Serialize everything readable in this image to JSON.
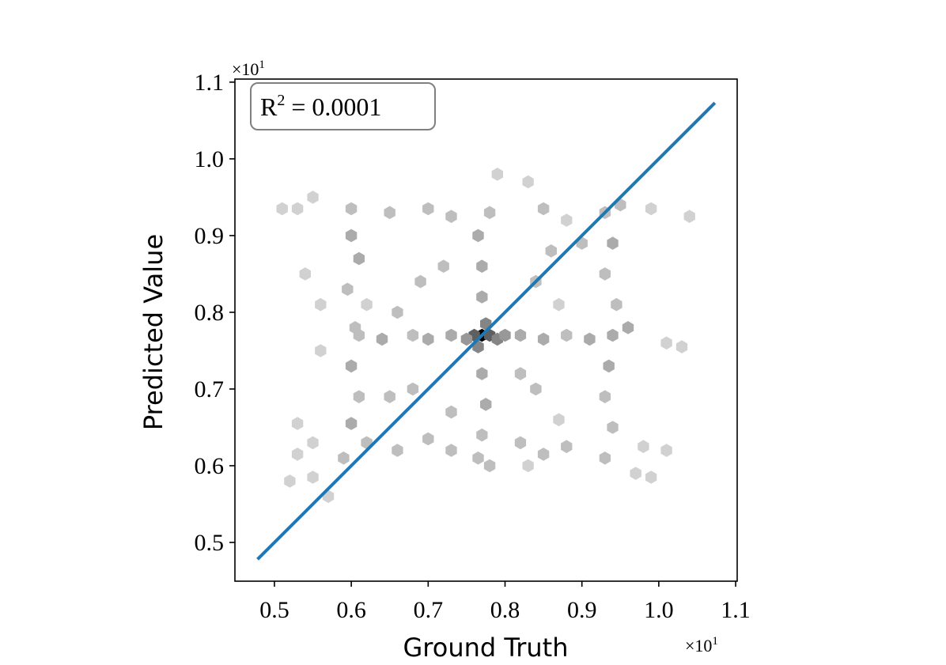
{
  "chart_data": {
    "type": "hexbin",
    "x_label": "Ground Truth",
    "y_label": "Predicted Value",
    "annotation": [
      "R",
      "2",
      " = 0.0001"
    ],
    "x_offset": [
      "×10",
      "1"
    ],
    "y_offset": [
      "×10",
      "1"
    ],
    "xlim": [
      0.4486,
      1.102
    ],
    "ylim": [
      0.4495,
      1.104
    ],
    "xticks": [
      0.5,
      0.6,
      0.7,
      0.8,
      0.9,
      {
        "value": 1,
        "label": "1.0"
      },
      1.1
    ],
    "yticks": [
      0.5,
      0.6,
      0.7,
      0.8,
      0.9,
      {
        "value": 1,
        "label": "1.0"
      },
      1.1
    ],
    "cells": {
      "x": [
        0.77,
        0.76,
        0.78,
        0.775,
        0.765,
        0.79,
        0.75,
        0.8,
        0.73,
        0.82,
        0.7,
        0.68,
        0.85,
        0.88,
        0.91,
        0.94,
        0.64,
        0.61,
        0.77,
        0.77,
        0.765,
        0.78,
        0.77,
        0.775,
        0.77,
        0.765,
        0.78,
        0.6,
        0.61,
        0.595,
        0.605,
        0.6,
        0.61,
        0.6,
        0.62,
        0.59,
        0.6,
        0.93,
        0.94,
        0.93,
        0.945,
        0.935,
        0.93,
        0.94,
        0.93,
        0.95,
        0.96,
        0.55,
        0.65,
        0.7,
        0.73,
        0.85,
        0.88,
        0.99,
        1.04,
        0.53,
        0.55,
        0.66,
        0.7,
        0.73,
        0.82,
        0.85,
        0.88,
        0.98,
        1.01,
        0.53,
        0.53,
        0.52,
        0.57,
        0.55,
        0.54,
        0.51,
        0.62,
        0.69,
        0.72,
        0.84,
        0.86,
        0.68,
        0.84,
        0.87,
        0.65,
        0.73,
        0.82,
        0.87,
        0.66,
        1.01,
        1.03,
        0.83,
        0.97,
        0.99,
        0.79,
        0.83,
        0.9,
        0.56,
        0.56
      ],
      "y": [
        0.77,
        0.77,
        0.77,
        0.785,
        0.755,
        0.765,
        0.765,
        0.77,
        0.77,
        0.77,
        0.765,
        0.77,
        0.765,
        0.77,
        0.765,
        0.77,
        0.765,
        0.77,
        0.82,
        0.86,
        0.9,
        0.93,
        0.72,
        0.68,
        0.64,
        0.61,
        0.6,
        0.9,
        0.87,
        0.83,
        0.78,
        0.73,
        0.69,
        0.655,
        0.63,
        0.61,
        0.935,
        0.93,
        0.89,
        0.85,
        0.81,
        0.73,
        0.69,
        0.65,
        0.61,
        0.94,
        0.78,
        0.95,
        0.93,
        0.935,
        0.925,
        0.935,
        0.92,
        0.935,
        0.925,
        0.935,
        0.63,
        0.62,
        0.635,
        0.62,
        0.63,
        0.615,
        0.625,
        0.625,
        0.62,
        0.655,
        0.615,
        0.58,
        0.56,
        0.585,
        0.85,
        0.935,
        0.81,
        0.84,
        0.86,
        0.84,
        0.88,
        0.7,
        0.7,
        0.66,
        0.69,
        0.67,
        0.72,
        0.81,
        0.8,
        0.76,
        0.755,
        0.6,
        0.59,
        0.585,
        0.98,
        0.97,
        0.89,
        0.75,
        0.81
      ],
      "counts": [
        12,
        7,
        7,
        5,
        5,
        5,
        4,
        4,
        3,
        3,
        3,
        2,
        3,
        2,
        3,
        3,
        3,
        2,
        3,
        3,
        3,
        2,
        3,
        3,
        2,
        2,
        2,
        3,
        3,
        2,
        2,
        3,
        2,
        3,
        2,
        2,
        2,
        2,
        3,
        2,
        2,
        3,
        2,
        2,
        2,
        2,
        3,
        1,
        2,
        2,
        2,
        2,
        1,
        1,
        1,
        1,
        1,
        2,
        2,
        2,
        2,
        2,
        2,
        1,
        1,
        1,
        1,
        1,
        1,
        1,
        1,
        1,
        1,
        2,
        2,
        2,
        2,
        2,
        2,
        1,
        2,
        2,
        2,
        1,
        2,
        1,
        1,
        1,
        1,
        1,
        1,
        1,
        2,
        1,
        1
      ]
    },
    "series": [
      {
        "color": "#1f77b4",
        "x": [
          0.478,
          1.073
        ],
        "values": [
          0.478,
          1.073
        ]
      }
    ]
  }
}
